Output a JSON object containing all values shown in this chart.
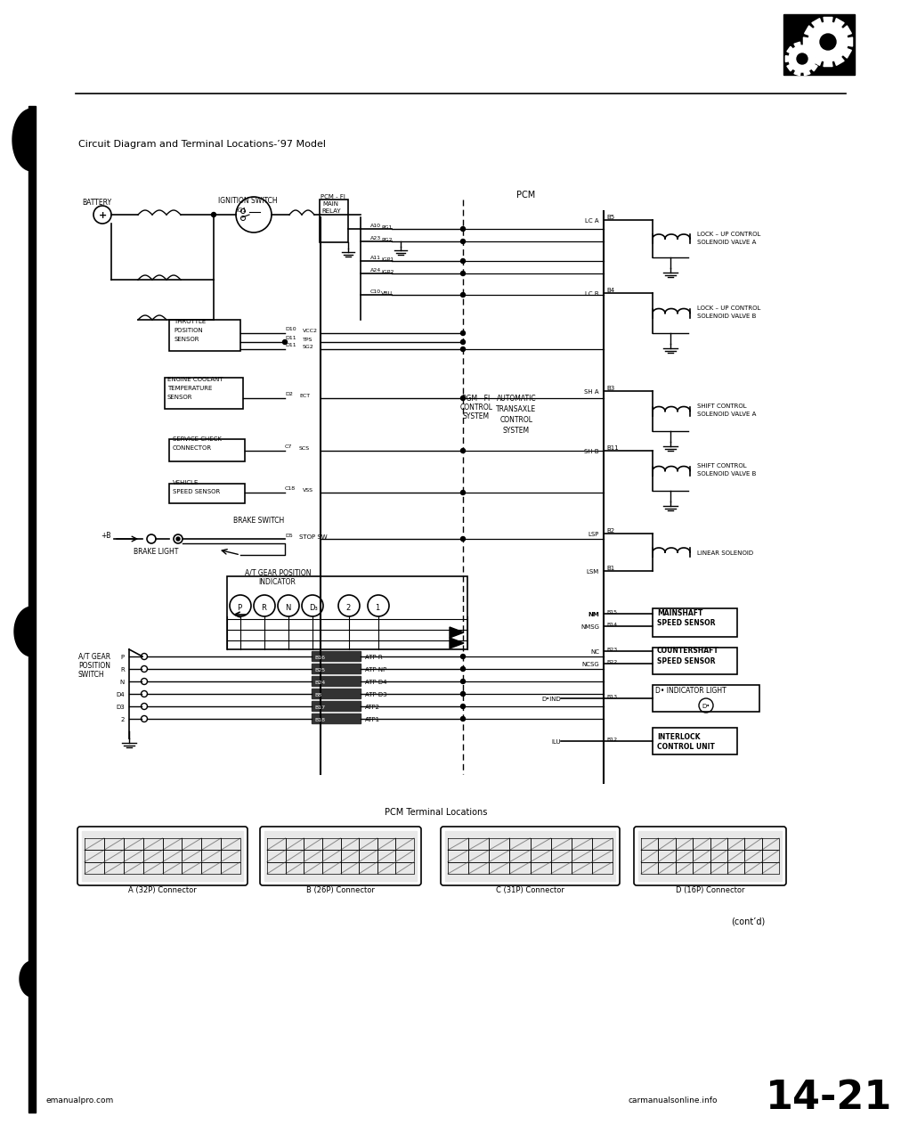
{
  "page_title": "Circuit Diagram and Terminal Locations-’97 Model",
  "page_number": "14-21",
  "website_left": "emanualpro.com",
  "website_right": "carmanualsonline.info",
  "cont_text": "(cont’d)",
  "bg_color": "#ffffff",
  "line_color": "#000000",
  "connectors": [
    "A (32P) Connector",
    "B (26P) Connector",
    "C (31P) Connector",
    "D (16P) Connector"
  ],
  "pcm_terminal_title": "PCM Terminal Locations"
}
